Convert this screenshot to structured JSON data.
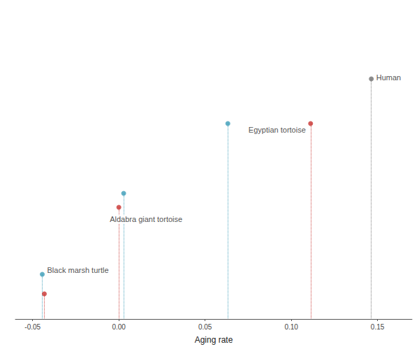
{
  "chart_data": {
    "type": "scatter",
    "x_label": "Aging rate",
    "xlim": [
      -0.06,
      0.17
    ],
    "xticks": [
      {
        "value": -0.05,
        "label": "-0.05"
      },
      {
        "value": 0,
        "label": "0.00"
      },
      {
        "value": 0.05,
        "label": "0.05"
      },
      {
        "value": 0.1,
        "label": "0.10"
      },
      {
        "value": 0.15,
        "label": "0.15"
      }
    ],
    "ylim": [
      0,
      10
    ],
    "tick_labels": "x",
    "grid": false,
    "marker": "circle",
    "line_style": "dotted",
    "series": [
      {
        "color": "#3b9cb8",
        "x": [
          -0.0444,
          0.0028,
          0.0632
        ],
        "y": [
          1.6,
          4.5,
          7.0
        ]
      },
      {
        "color": "#c8322f",
        "x": [
          -0.0432,
          0.0,
          0.1112
        ],
        "y": [
          0.9,
          4.0,
          7.0
        ]
      },
      {
        "color": "#707070",
        "x": [
          0.1464
        ],
        "y": [
          8.6
        ]
      }
    ],
    "annotations": [
      {
        "text": "Black marsh turtle",
        "x": -0.0444,
        "y": 1.6
      },
      {
        "text": "Aldabra giant tortoise",
        "x": 0.0,
        "y": 4.0
      },
      {
        "text": "Egyptian tortoise",
        "x": 0.1112,
        "y": 7.0
      },
      {
        "text": "Human",
        "x": 0.1464,
        "y": 8.6
      }
    ]
  }
}
